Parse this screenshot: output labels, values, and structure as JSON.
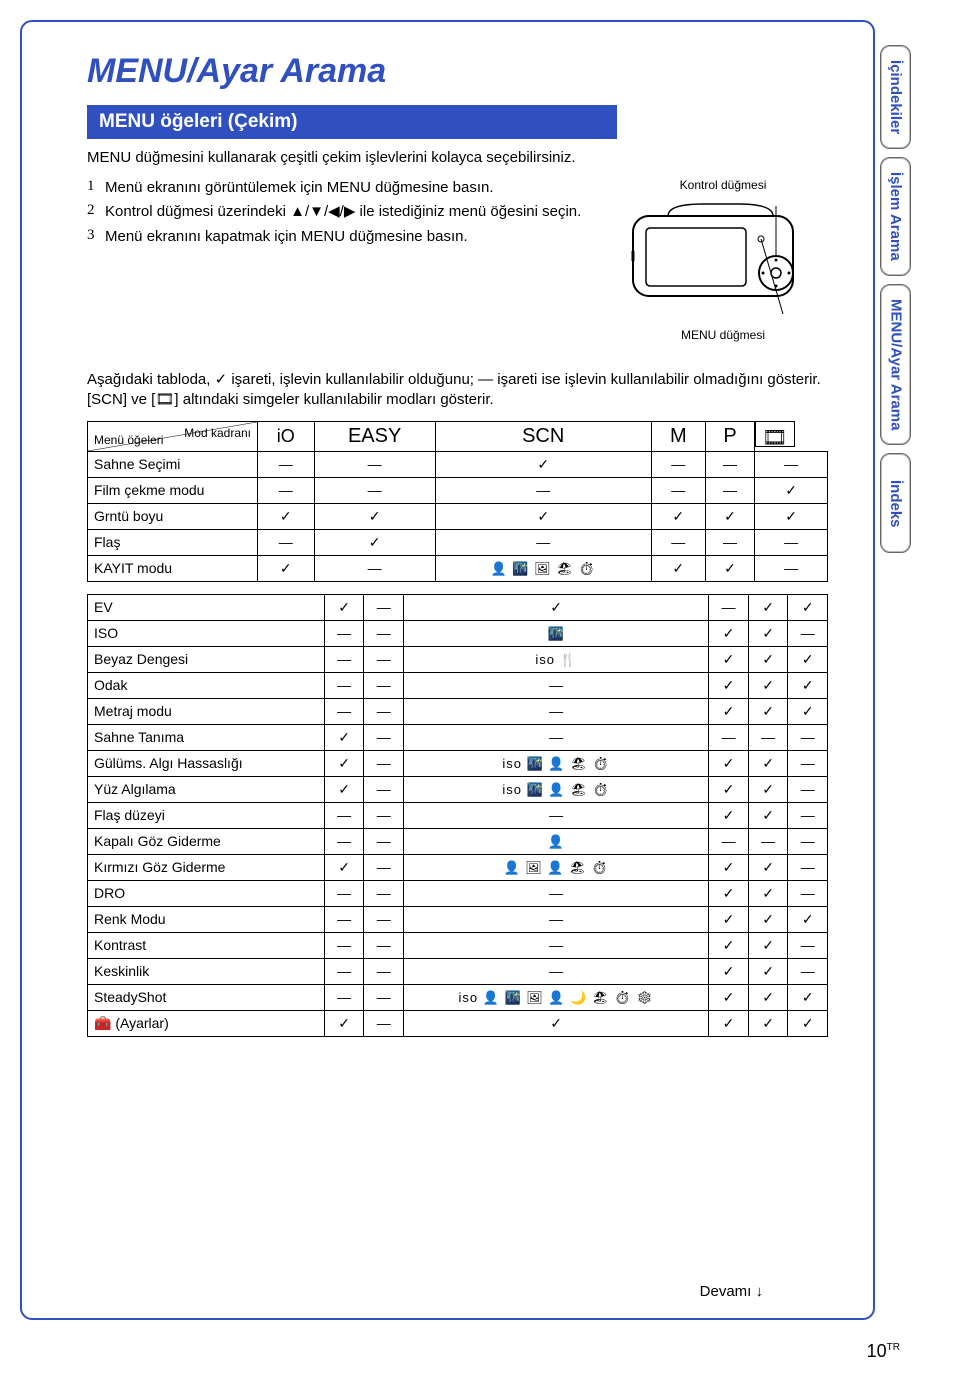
{
  "title": "MENU/Ayar Arama",
  "section_header": "MENU öğeleri (Çekim)",
  "intro": "MENU düğmesini kullanarak çeşitli çekim işlevlerini kolayca seçebilirsiniz.",
  "steps": [
    "Menü ekranını görüntülemek için MENU düğmesine basın.",
    "Kontrol düğmesi üzerindeki ▲/▼/◀/▶ ile istediğiniz menü öğesini seçin.",
    "Menü ekranını kapatmak için MENU düğmesine basın."
  ],
  "camera_label_top": "Kontrol düğmesi",
  "camera_label_bottom": "MENU düğmesi",
  "description": "Aşağıdaki tabloda, ✓ işareti, işlevin kullanılabilir olduğunu; — işareti ise işlevin kullanılabilir olmadığını gösterir. [SCN] ve [🎞] altındaki simgeler kullanılabilir modları gösterir.",
  "table_corner": {
    "top": "Mod kadranı",
    "bottom": "Menü öğeleri"
  },
  "mode_headers": {
    "auto": "iO",
    "easy": "EASY",
    "scn": "SCN",
    "m": "M",
    "p": "P",
    "movie": "🎞"
  },
  "tables": [
    {
      "rows": [
        {
          "label": "Sahne Seçimi",
          "cells": [
            "—",
            "—",
            "✓",
            "—",
            "—",
            "—"
          ]
        },
        {
          "label": "Film çekme modu",
          "cells": [
            "—",
            "—",
            "—",
            "—",
            "—",
            "✓"
          ]
        },
        {
          "label": "Grntü boyu",
          "cells": [
            "✓",
            "✓",
            "✓",
            "✓",
            "✓",
            "✓"
          ]
        },
        {
          "label": "Flaş",
          "cells": [
            "—",
            "✓",
            "—",
            "—",
            "—",
            "—"
          ]
        },
        {
          "label": "KAYIT modu",
          "cells": [
            "✓",
            "—",
            "icons1",
            "✓",
            "✓",
            "—"
          ]
        }
      ]
    },
    {
      "rows": [
        {
          "label": "EV",
          "cells": [
            "✓",
            "—",
            "✓",
            "—",
            "✓",
            "✓"
          ]
        },
        {
          "label": "ISO",
          "cells": [
            "—",
            "—",
            "icons_iso1",
            "✓",
            "✓",
            "—"
          ]
        },
        {
          "label": "Beyaz Dengesi",
          "cells": [
            "—",
            "—",
            "icons_wb",
            "✓",
            "✓",
            "✓"
          ]
        },
        {
          "label": "Odak",
          "cells": [
            "—",
            "—",
            "—",
            "✓",
            "✓",
            "✓"
          ]
        },
        {
          "label": "Metraj modu",
          "cells": [
            "—",
            "—",
            "—",
            "✓",
            "✓",
            "✓"
          ]
        },
        {
          "label": "Sahne Tanıma",
          "cells": [
            "✓",
            "—",
            "—",
            "—",
            "—",
            "—"
          ]
        },
        {
          "label": "Gülüms. Algı Hassaslığı",
          "cells": [
            "✓",
            "—",
            "icons_smile",
            "✓",
            "✓",
            "—"
          ]
        },
        {
          "label": "Yüz Algılama",
          "cells": [
            "✓",
            "—",
            "icons_face",
            "✓",
            "✓",
            "—"
          ]
        },
        {
          "label": "Flaş düzeyi",
          "cells": [
            "—",
            "—",
            "—",
            "✓",
            "✓",
            "—"
          ]
        },
        {
          "label": "Kapalı Göz Giderme",
          "cells": [
            "—",
            "—",
            "icons_eye",
            "—",
            "—",
            "—"
          ]
        },
        {
          "label": "Kırmızı Göz Giderme",
          "cells": [
            "✓",
            "—",
            "icons_red",
            "✓",
            "✓",
            "—"
          ]
        },
        {
          "label": "DRO",
          "cells": [
            "—",
            "—",
            "—",
            "✓",
            "✓",
            "—"
          ]
        },
        {
          "label": "Renk Modu",
          "cells": [
            "—",
            "—",
            "—",
            "✓",
            "✓",
            "✓"
          ]
        },
        {
          "label": "Kontrast",
          "cells": [
            "—",
            "—",
            "—",
            "✓",
            "✓",
            "—"
          ]
        },
        {
          "label": "Keskinlik",
          "cells": [
            "—",
            "—",
            "—",
            "✓",
            "✓",
            "—"
          ]
        },
        {
          "label": "SteadyShot",
          "cells": [
            "—",
            "—",
            "icons_steady",
            "✓",
            "✓",
            "✓"
          ]
        },
        {
          "label": "🧰 (Ayarlar)",
          "cells": [
            "✓",
            "—",
            "✓",
            "✓",
            "✓",
            "✓"
          ]
        }
      ]
    }
  ],
  "scene_icons": {
    "icons1": "👤 🌃 🖼 🏖 ⏱",
    "icons_iso1": "🌃",
    "icons_wb": "iso 🍴",
    "icons_smile": "iso 🌃 👤 🏖 ⏱",
    "icons_face": "iso 🌃 👤 🏖 ⏱",
    "icons_eye": "👤",
    "icons_red": "👤 🖼 👤 🏖 ⏱",
    "icons_steady": "iso 👤 🌃 🖼 👤 🌙 🏖 ⏱ ❄"
  },
  "side_tabs": [
    "İçindekiler",
    "İşlem Arama",
    "MENU/Ayar Arama",
    "İndeks"
  ],
  "continue_text": "Devamı ↓",
  "page_number": "10",
  "page_suffix": "TR",
  "colors": {
    "primary": "#3050c0"
  }
}
